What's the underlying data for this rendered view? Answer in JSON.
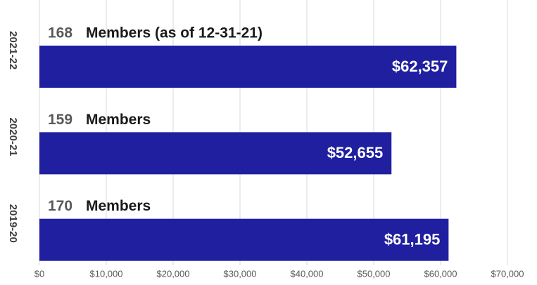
{
  "chart_data": {
    "type": "bar",
    "orientation": "horizontal",
    "categories": [
      "2021-22",
      "2020-21",
      "2019-20"
    ],
    "values": [
      62357,
      52655,
      61195
    ],
    "value_labels": [
      "$62,357",
      "$52,655",
      "$61,195"
    ],
    "members": [
      {
        "count": 168,
        "label": "Members (as of 12-31-21)"
      },
      {
        "count": 159,
        "label": "Members"
      },
      {
        "count": 170,
        "label": "Members"
      }
    ],
    "color": "#1f1fa0",
    "xlim": [
      0,
      70000
    ],
    "xticks": [
      {
        "value": 0,
        "label": "$0"
      },
      {
        "value": 10000,
        "label": "$10,000"
      },
      {
        "value": 20000,
        "label": "$20,000"
      },
      {
        "value": 30000,
        "label": "$30,000"
      },
      {
        "value": 40000,
        "label": "$40,000"
      },
      {
        "value": 50000,
        "label": "$50,000"
      },
      {
        "value": 60000,
        "label": "$60,000"
      },
      {
        "value": 70000,
        "label": "$70,000"
      }
    ],
    "grid": true
  }
}
